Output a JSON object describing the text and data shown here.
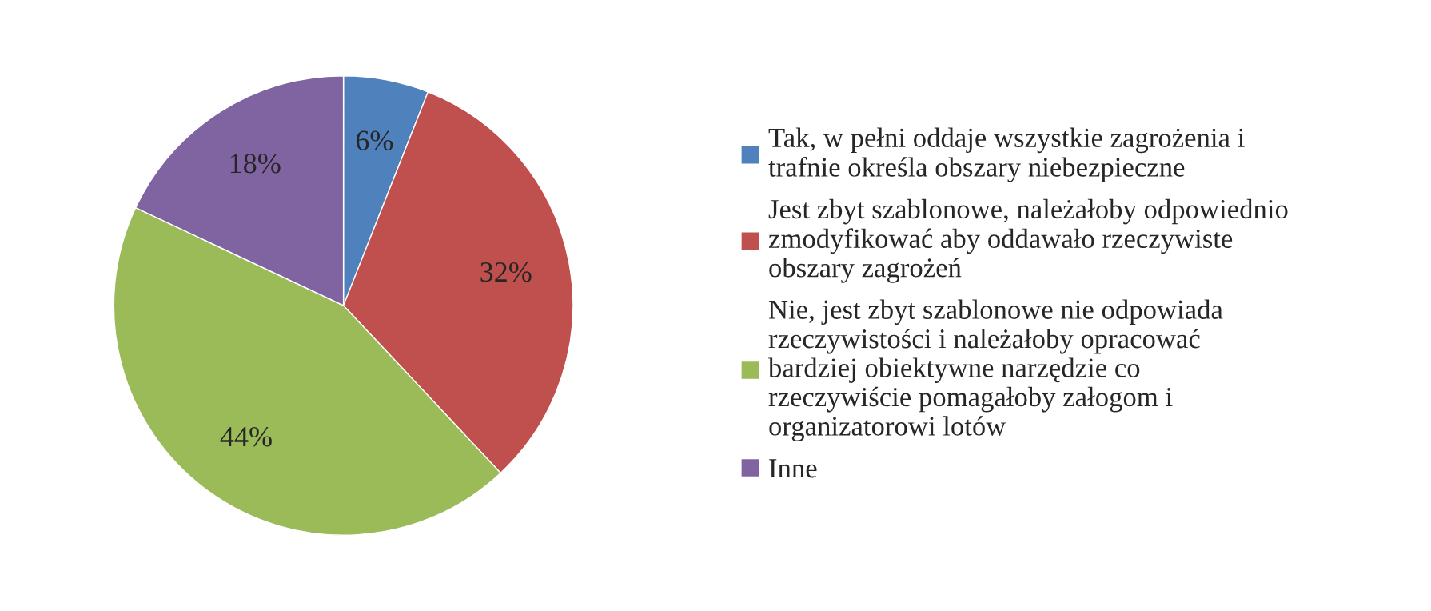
{
  "chart_data": {
    "type": "pie",
    "categories": [
      "Tak, w pełni oddaje wszystkie zagrożenia i trafnie określa obszary niebezpieczne",
      "Jest zbyt szablonowe, należałoby odpowiednio zmodyfikować aby oddawało rzeczywiste obszary zagrożeń",
      "Nie, jest zbyt szablonowe nie odpowiada rzeczywistości i należałoby opracować bardziej obiektywne narzędzie co rzeczywiście pomagałoby załogom i organizatorowi lotów",
      "Inne"
    ],
    "values": [
      6,
      32,
      44,
      18
    ],
    "colors": [
      "#4f81bd",
      "#c0504d",
      "#9bbb59",
      "#8064a2"
    ],
    "value_labels": [
      "6%",
      "32%",
      "44%",
      "18%"
    ],
    "legend": "right"
  }
}
